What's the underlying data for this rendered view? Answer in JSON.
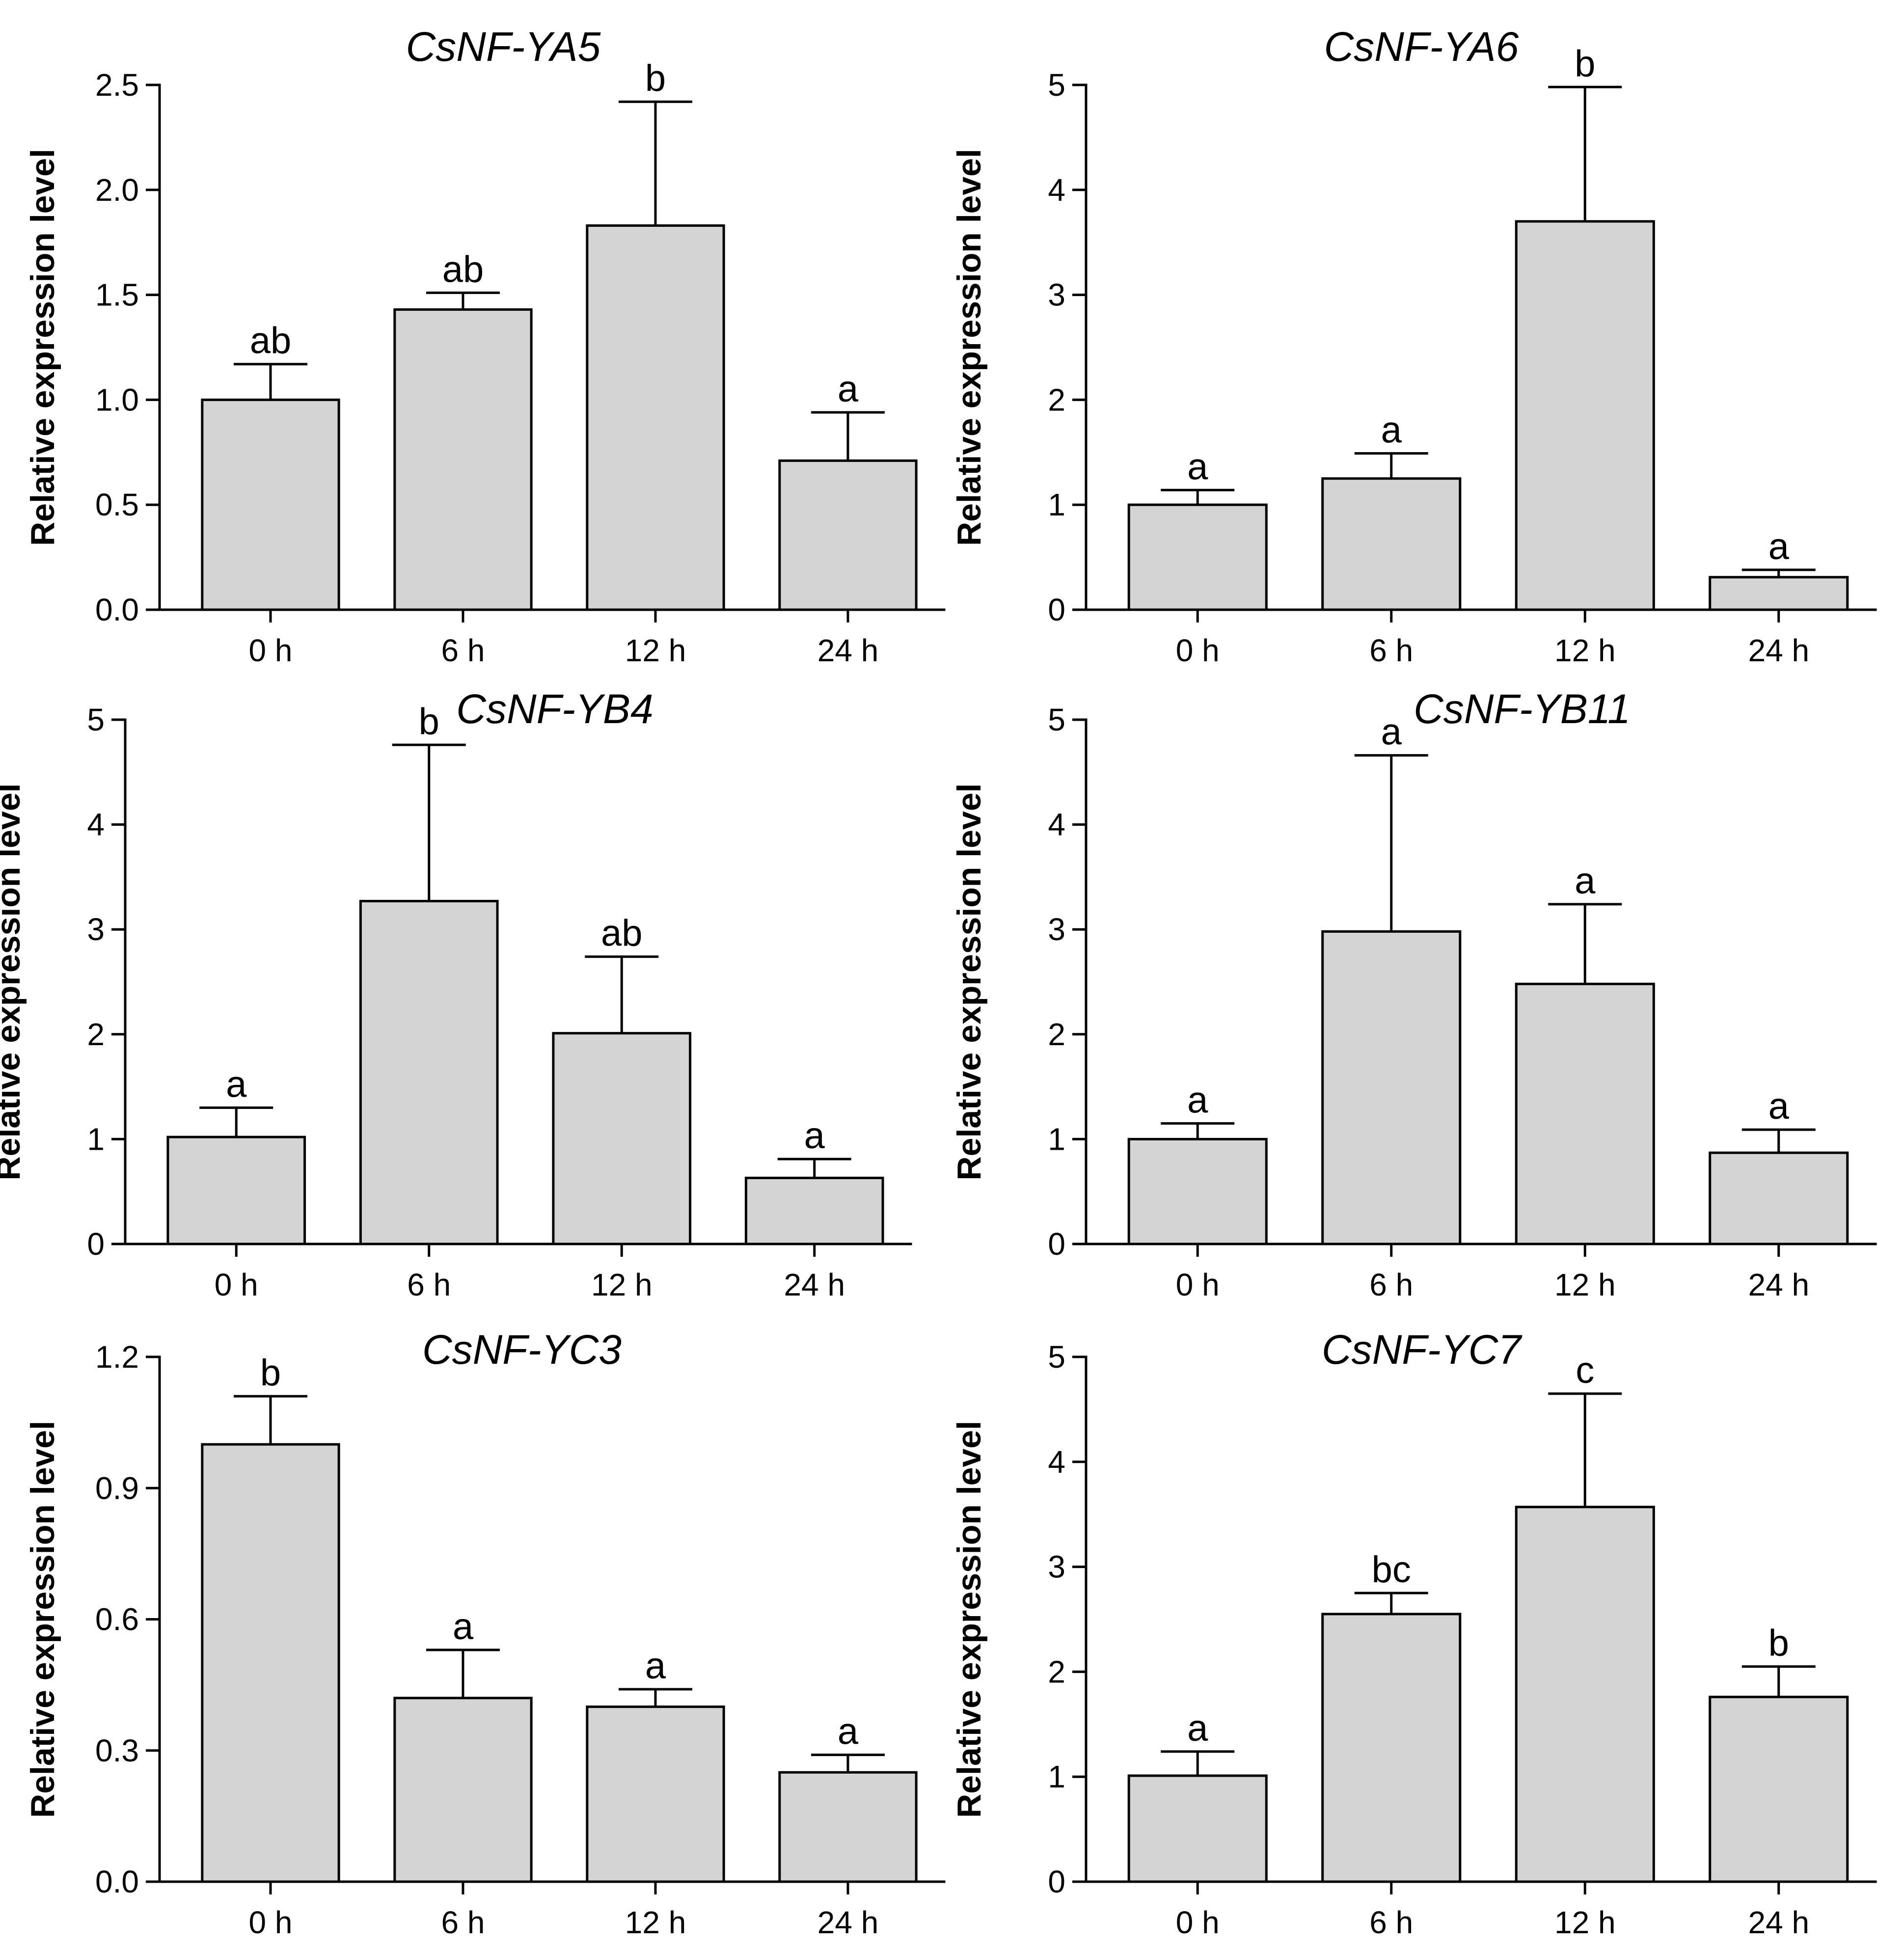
{
  "chart_data": [
    {
      "type": "bar",
      "title": "CsNF-YA5",
      "ylabel": "Relative expression level",
      "xlabel": "",
      "categories": [
        "0 h",
        "6 h",
        "12 h",
        "24 h"
      ],
      "values": [
        1.0,
        1.43,
        1.83,
        0.71
      ],
      "errors": [
        0.17,
        0.08,
        0.59,
        0.23
      ],
      "significance": [
        "ab",
        "ab",
        "b",
        "a"
      ],
      "ylim": [
        0,
        2.5
      ],
      "yticks": [
        "0.0",
        "0.5",
        "1.0",
        "1.5",
        "2.0",
        "2.5"
      ]
    },
    {
      "type": "bar",
      "title": "CsNF-YA6",
      "ylabel": "Relative expression level",
      "xlabel": "",
      "categories": [
        "0 h",
        "6 h",
        "12 h",
        "24 h"
      ],
      "values": [
        1.0,
        1.25,
        3.7,
        0.31
      ],
      "errors": [
        0.14,
        0.24,
        1.28,
        0.07
      ],
      "significance": [
        "a",
        "a",
        "b",
        "a"
      ],
      "ylim": [
        0,
        5
      ],
      "yticks": [
        "0",
        "1",
        "2",
        "3",
        "4",
        "5"
      ]
    },
    {
      "type": "bar",
      "title": "CsNF-YB4",
      "ylabel": "Relative expression level",
      "xlabel": "",
      "categories": [
        "0 h",
        "6 h",
        "12 h",
        "24 h"
      ],
      "values": [
        1.02,
        3.27,
        2.01,
        0.63
      ],
      "errors": [
        0.28,
        1.49,
        0.73,
        0.18
      ],
      "significance": [
        "a",
        "b",
        "ab",
        "a"
      ],
      "ylim": [
        0,
        5
      ],
      "yticks": [
        "0",
        "1",
        "2",
        "3",
        "4",
        "5"
      ]
    },
    {
      "type": "bar",
      "title": "CsNF-YB11",
      "ylabel": "Relative expression level",
      "xlabel": "",
      "categories": [
        "0 h",
        "6 h",
        "12 h",
        "24 h"
      ],
      "values": [
        1.0,
        2.98,
        2.48,
        0.87
      ],
      "errors": [
        0.15,
        1.68,
        0.76,
        0.22
      ],
      "significance": [
        "a",
        "a",
        "a",
        "a"
      ],
      "ylim": [
        0,
        5
      ],
      "yticks": [
        "0",
        "1",
        "2",
        "3",
        "4",
        "5"
      ]
    },
    {
      "type": "bar",
      "title": "CsNF-YC3",
      "ylabel": "Relative expression level",
      "xlabel": "",
      "categories": [
        "0 h",
        "6 h",
        "12 h",
        "24 h"
      ],
      "values": [
        1.0,
        0.42,
        0.4,
        0.25
      ],
      "errors": [
        0.11,
        0.11,
        0.04,
        0.04
      ],
      "significance": [
        "b",
        "a",
        "a",
        "a"
      ],
      "ylim": [
        0,
        1.2
      ],
      "yticks": [
        "0.0",
        "0.3",
        "0.6",
        "0.9",
        "1.2"
      ]
    },
    {
      "type": "bar",
      "title": "CsNF-YC7",
      "ylabel": "Relative expression level",
      "xlabel": "",
      "categories": [
        "0 h",
        "6 h",
        "12 h",
        "24 h"
      ],
      "values": [
        1.01,
        2.55,
        3.57,
        1.76
      ],
      "errors": [
        0.23,
        0.2,
        1.08,
        0.29
      ],
      "significance": [
        "a",
        "bc",
        "c",
        "b"
      ],
      "ylim": [
        0,
        5
      ],
      "yticks": [
        "0",
        "1",
        "2",
        "3",
        "4",
        "5"
      ]
    }
  ]
}
